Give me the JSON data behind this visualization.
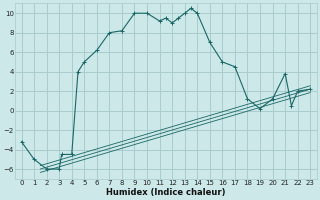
{
  "xlabel": "Humidex (Indice chaleur)",
  "bg_color": "#cce8e8",
  "grid_color": "#aacccc",
  "line_color": "#1a6666",
  "xlim": [
    -0.5,
    23.5
  ],
  "ylim": [
    -7,
    11
  ],
  "yticks": [
    -6,
    -4,
    -2,
    0,
    2,
    4,
    6,
    8,
    10
  ],
  "xticks": [
    0,
    1,
    2,
    3,
    4,
    5,
    6,
    7,
    8,
    9,
    10,
    11,
    12,
    13,
    14,
    15,
    16,
    17,
    18,
    19,
    20,
    21,
    22,
    23
  ],
  "main_x": [
    0,
    1,
    2,
    3,
    3.2,
    4,
    4.5,
    5,
    6,
    7,
    8,
    9,
    10,
    11,
    11.5,
    12,
    12.5,
    13,
    13.5,
    14,
    15,
    16,
    17,
    18,
    19,
    20,
    21,
    21.5,
    22,
    23
  ],
  "main_y": [
    -3.2,
    -5,
    -6,
    -6,
    -4.5,
    -4.5,
    4,
    5,
    6.2,
    8,
    8.2,
    10,
    10,
    9.2,
    9.5,
    9,
    9.5,
    10,
    10.5,
    10,
    7,
    5,
    4.5,
    1.2,
    0.2,
    1.2,
    3.8,
    0.5,
    2,
    2.2
  ],
  "diag_x0": 1.5,
  "diag_y0": -6,
  "diag_x1": 23,
  "diag_y1": 2.2,
  "diag_offsets": [
    -0.35,
    0,
    0.35
  ]
}
